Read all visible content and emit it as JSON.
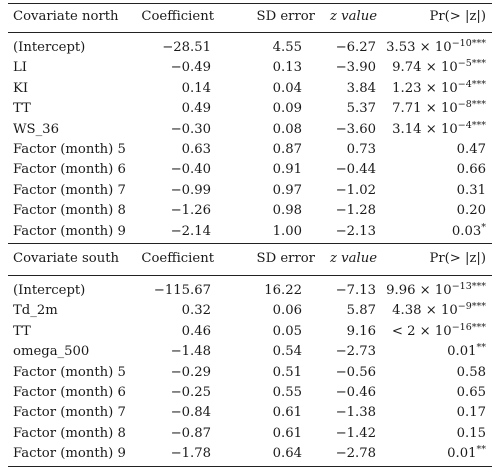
{
  "tables": [
    {
      "header": {
        "covariate": "Covariate north",
        "coefficient": "Coefficient",
        "sd_error": "SD error",
        "z_value": "z value",
        "p_value": "Pr(> |z|)"
      },
      "rows": [
        {
          "covariate": "(Intercept)",
          "coefficient": "−28.51",
          "sd_error": "4.55",
          "z_value": "−6.27",
          "p_value": "3.53 × 10",
          "p_exp": "−10",
          "sig": "***"
        },
        {
          "covariate": "LI",
          "coefficient": "−0.49",
          "sd_error": "0.13",
          "z_value": "−3.90",
          "p_value": "9.74 × 10",
          "p_exp": "−5",
          "sig": "***"
        },
        {
          "covariate": "KI",
          "coefficient": "0.14",
          "sd_error": "0.04",
          "z_value": "3.84",
          "p_value": "1.23 × 10",
          "p_exp": "−4",
          "sig": "***"
        },
        {
          "covariate": "TT",
          "coefficient": "0.49",
          "sd_error": "0.09",
          "z_value": "5.37",
          "p_value": "7.71 × 10",
          "p_exp": "−8",
          "sig": "***"
        },
        {
          "covariate": "WS_36",
          "coefficient": "−0.30",
          "sd_error": "0.08",
          "z_value": "−3.60",
          "p_value": "3.14 × 10",
          "p_exp": "−4",
          "sig": "***"
        },
        {
          "covariate": "Factor (month) 5",
          "coefficient": "0.63",
          "sd_error": "0.87",
          "z_value": "0.73",
          "p_value": "0.47",
          "p_exp": "",
          "sig": ""
        },
        {
          "covariate": "Factor (month) 6",
          "coefficient": "−0.40",
          "sd_error": "0.91",
          "z_value": "−0.44",
          "p_value": "0.66",
          "p_exp": "",
          "sig": ""
        },
        {
          "covariate": "Factor (month) 7",
          "coefficient": "−0.99",
          "sd_error": "0.97",
          "z_value": "−1.02",
          "p_value": "0.31",
          "p_exp": "",
          "sig": ""
        },
        {
          "covariate": "Factor (month) 8",
          "coefficient": "−1.26",
          "sd_error": "0.98",
          "z_value": "−1.28",
          "p_value": "0.20",
          "p_exp": "",
          "sig": ""
        },
        {
          "covariate": "Factor (month) 9",
          "coefficient": "−2.14",
          "sd_error": "1.00",
          "z_value": "−2.13",
          "p_value": "0.03",
          "p_exp": "",
          "sig": "*"
        }
      ]
    },
    {
      "header": {
        "covariate": "Covariate south",
        "coefficient": "Coefficient",
        "sd_error": "SD error",
        "z_value": "z value",
        "p_value": "Pr(> |z|)"
      },
      "rows": [
        {
          "covariate": "(Intercept)",
          "coefficient": "−115.67",
          "sd_error": "16.22",
          "z_value": "−7.13",
          "p_value": "9.96 × 10",
          "p_exp": "−13",
          "sig": "***"
        },
        {
          "covariate": "Td_2m",
          "coefficient": "0.32",
          "sd_error": "0.06",
          "z_value": "5.87",
          "p_value": "4.38 × 10",
          "p_exp": "−9",
          "sig": "***"
        },
        {
          "covariate": "TT",
          "coefficient": "0.46",
          "sd_error": "0.05",
          "z_value": "9.16",
          "p_value": "< 2 × 10",
          "p_exp": "−16",
          "sig": "***"
        },
        {
          "covariate": "omega_500",
          "coefficient": "−1.48",
          "sd_error": "0.54",
          "z_value": "−2.73",
          "p_value": "0.01",
          "p_exp": "",
          "sig": "**"
        },
        {
          "covariate": "Factor (month) 5",
          "coefficient": "−0.29",
          "sd_error": "0.51",
          "z_value": "−0.56",
          "p_value": "0.58",
          "p_exp": "",
          "sig": ""
        },
        {
          "covariate": "Factor (month) 6",
          "coefficient": "−0.25",
          "sd_error": "0.55",
          "z_value": "−0.46",
          "p_value": "0.65",
          "p_exp": "",
          "sig": ""
        },
        {
          "covariate": "Factor (month) 7",
          "coefficient": "−0.84",
          "sd_error": "0.61",
          "z_value": "−1.38",
          "p_value": "0.17",
          "p_exp": "",
          "sig": ""
        },
        {
          "covariate": "Factor (month) 8",
          "coefficient": "−0.87",
          "sd_error": "0.61",
          "z_value": "−1.42",
          "p_value": "0.15",
          "p_exp": "",
          "sig": ""
        },
        {
          "covariate": "Factor (month) 9",
          "coefficient": "−1.78",
          "sd_error": "0.64",
          "z_value": "−2.78",
          "p_value": "0.01",
          "p_exp": "",
          "sig": "**"
        }
      ]
    }
  ]
}
